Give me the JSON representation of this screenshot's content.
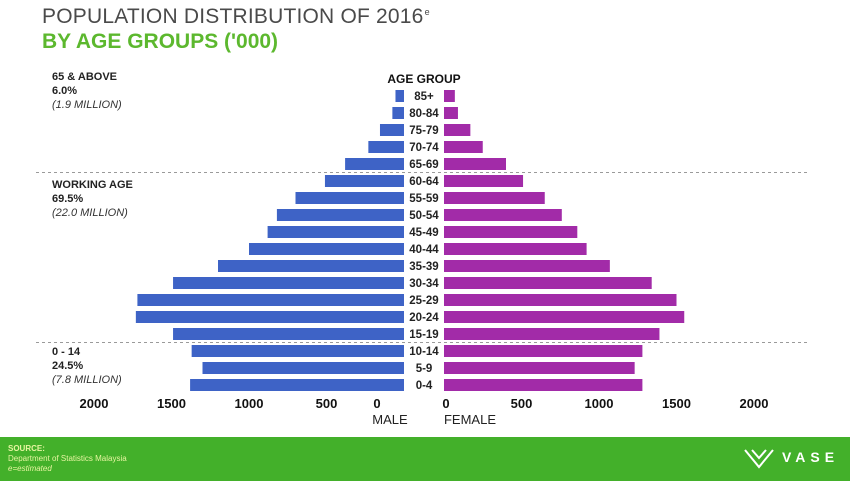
{
  "header": {
    "title": "POPULATION DISTRIBUTION OF 2016",
    "title_superscript": "e",
    "subtitle": "BY AGE GROUPS ('000)"
  },
  "groups": [
    {
      "name": "65 & ABOVE",
      "pct": "6.0%",
      "million": "(1.9 MILLION)"
    },
    {
      "name": "WORKING AGE",
      "pct": "69.5%",
      "million": "(22.0 MILLION)"
    },
    {
      "name": "0 - 14",
      "pct": "24.5%",
      "million": "(7.8 MILLION)"
    }
  ],
  "footer": {
    "source_label": "SOURCE:",
    "source": "Department of Statistics Malaysia",
    "note": "e=estimated",
    "brand": "VASE"
  },
  "chart_data": {
    "type": "bar",
    "orientation": "horizontal",
    "layout": "population-pyramid",
    "category_axis_title": "AGE GROUP",
    "categories": [
      "85+",
      "80-84",
      "75-79",
      "70-74",
      "65-69",
      "60-64",
      "55-59",
      "50-54",
      "45-49",
      "40-44",
      "35-39",
      "30-34",
      "25-29",
      "20-24",
      "15-19",
      "10-14",
      "5-9",
      "0-4"
    ],
    "series": [
      {
        "name": "MALE",
        "color": "#3e63c6",
        "values": [
          55,
          75,
          155,
          230,
          380,
          510,
          700,
          820,
          880,
          1000,
          1200,
          1490,
          1720,
          1730,
          1490,
          1370,
          1300,
          1380
        ]
      },
      {
        "name": "FEMALE",
        "color": "#a22ba8",
        "values": [
          70,
          90,
          170,
          250,
          400,
          510,
          650,
          760,
          860,
          920,
          1070,
          1340,
          1500,
          1550,
          1390,
          1280,
          1230,
          1280
        ]
      }
    ],
    "x_ticks_left": [
      "2000",
      "1500",
      "1000",
      "500",
      "0"
    ],
    "x_ticks_right": [
      "0",
      "500",
      "1000",
      "1500",
      "2000"
    ],
    "xlim": [
      0,
      2000
    ],
    "xlabel_left": "MALE",
    "xlabel_right": "FEMALE",
    "group_separators_after": [
      "65-69",
      "15-19"
    ]
  }
}
